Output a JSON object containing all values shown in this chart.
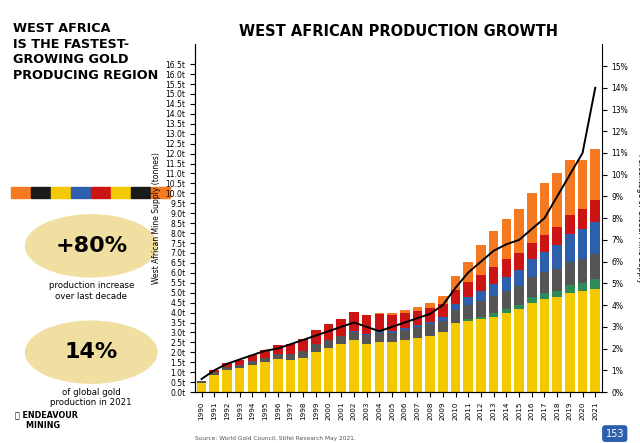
{
  "title": "WEST AFRICAN PRODUCTION GROWTH",
  "years": [
    1990,
    1991,
    1992,
    1993,
    1994,
    1995,
    1996,
    1997,
    1998,
    1999,
    2000,
    2001,
    2002,
    2003,
    2004,
    2005,
    2006,
    2007,
    2008,
    2009,
    2010,
    2011,
    2012,
    2013,
    2014,
    2015,
    2016,
    2017,
    2018,
    2019,
    2020,
    2021
  ],
  "ghana_other": [
    0.45,
    0.85,
    1.1,
    1.2,
    1.35,
    1.5,
    1.65,
    1.6,
    1.7,
    2.0,
    2.2,
    2.4,
    2.6,
    2.4,
    2.5,
    2.5,
    2.6,
    2.7,
    2.8,
    3.0,
    3.5,
    3.6,
    3.7,
    3.8,
    4.0,
    4.2,
    4.5,
    4.7,
    4.8,
    5.0,
    5.1,
    5.2
  ],
  "senegal": [
    0.0,
    0.0,
    0.0,
    0.0,
    0.0,
    0.0,
    0.0,
    0.0,
    0.0,
    0.0,
    0.0,
    0.0,
    0.0,
    0.0,
    0.0,
    0.0,
    0.0,
    0.0,
    0.0,
    0.0,
    0.0,
    0.1,
    0.1,
    0.2,
    0.2,
    0.2,
    0.3,
    0.3,
    0.3,
    0.4,
    0.4,
    0.5
  ],
  "guinea": [
    0.1,
    0.15,
    0.15,
    0.18,
    0.2,
    0.22,
    0.25,
    0.3,
    0.35,
    0.4,
    0.4,
    0.4,
    0.4,
    0.45,
    0.45,
    0.45,
    0.5,
    0.55,
    0.6,
    0.6,
    0.65,
    0.7,
    0.8,
    0.85,
    0.9,
    0.95,
    1.0,
    1.05,
    1.1,
    1.15,
    1.2,
    1.25
  ],
  "cote_divoire": [
    0.0,
    0.0,
    0.0,
    0.0,
    0.0,
    0.0,
    0.0,
    0.0,
    0.0,
    0.0,
    0.0,
    0.0,
    0.05,
    0.05,
    0.1,
    0.1,
    0.1,
    0.1,
    0.15,
    0.2,
    0.3,
    0.4,
    0.5,
    0.6,
    0.7,
    0.8,
    0.9,
    1.0,
    1.2,
    1.4,
    1.5,
    1.6
  ],
  "mali": [
    0.0,
    0.1,
    0.2,
    0.25,
    0.3,
    0.4,
    0.45,
    0.5,
    0.6,
    0.7,
    0.8,
    0.9,
    1.0,
    1.0,
    0.9,
    0.85,
    0.8,
    0.75,
    0.7,
    0.65,
    0.7,
    0.75,
    0.8,
    0.85,
    0.9,
    0.85,
    0.8,
    0.85,
    0.9,
    0.95,
    1.0,
    1.1
  ],
  "burkina_faso": [
    0.0,
    0.0,
    0.0,
    0.0,
    0.0,
    0.0,
    0.0,
    0.0,
    0.0,
    0.0,
    0.0,
    0.0,
    0.0,
    0.0,
    0.05,
    0.1,
    0.15,
    0.2,
    0.25,
    0.4,
    0.7,
    1.0,
    1.5,
    1.8,
    2.0,
    2.2,
    2.5,
    2.6,
    2.7,
    2.8,
    2.5,
    2.6
  ],
  "pct_mine_supply": [
    0.6,
    1.0,
    1.3,
    1.5,
    1.7,
    1.9,
    2.0,
    2.2,
    2.4,
    2.6,
    2.8,
    3.0,
    3.2,
    3.0,
    2.8,
    3.0,
    3.2,
    3.4,
    3.6,
    4.0,
    4.8,
    5.5,
    6.0,
    6.5,
    6.8,
    7.0,
    7.5,
    8.0,
    9.0,
    10.0,
    11.0,
    14.0
  ],
  "colors": {
    "burkina_faso": "#F47920",
    "mali": "#CC1414",
    "guinea": "#555555",
    "cote_divoire": "#2E5FAC",
    "senegal": "#2E8B57",
    "ghana_other": "#F5C900",
    "pct_line": "#000000"
  },
  "ylabel_left": "West African Mine Supply (tonnes)",
  "ylabel_right": "Percentage of Global Mine Supply",
  "source": "Source: World Gold Council, Stifel Research May 2021.",
  "left_panel_bg": "#F5C518",
  "left_title": "WEST AFRICA\nIS THE FASTEST-\nGROWING GOLD\nPRODUCING REGION",
  "stat1": "+80%",
  "stat1_sub": "production increase\nover last decade",
  "stat2": "14%",
  "stat2_sub": "of global gold\nproduction in 2021",
  "page_num": "153",
  "stripe_colors": [
    "#F47920",
    "#1A1A1A",
    "#F5C900",
    "#2E5FAC",
    "#CC1414",
    "#F5C900",
    "#1A1A1A",
    "#F47920"
  ],
  "yticks_left": [
    0.0,
    0.5,
    1.0,
    1.5,
    2.0,
    2.5,
    3.0,
    3.5,
    4.0,
    4.5,
    5.0,
    5.5,
    6.0,
    6.5,
    7.0,
    7.5,
    8.0,
    8.5,
    9.0,
    9.5,
    10.0,
    10.5,
    11.0,
    11.5,
    12.0,
    12.5,
    13.0,
    13.5,
    14.0,
    14.5,
    15.0,
    15.5,
    16.0,
    16.5
  ],
  "ytick_labels_left": [
    "0.0t",
    "0.5t",
    "1.0t",
    "1.5t",
    "2.0t",
    "2.5t",
    "3.0t",
    "3.5t",
    "4.0t",
    "4.5t",
    "5.0t",
    "5.5t",
    "6.0t",
    "6.5t",
    "7.0t",
    "7.5t",
    "8.0t",
    "8.5t",
    "9.0t",
    "9.5t",
    "10.0t",
    "10.5t",
    "11.0t",
    "11.5t",
    "12.0t",
    "12.5t",
    "13.0t",
    "13.5t",
    "14.0t",
    "14.5t",
    "15.0t",
    "15.5t",
    "16.0t",
    "16.5t"
  ],
  "yticks_right": [
    0,
    1,
    2,
    3,
    4,
    5,
    6,
    7,
    8,
    9,
    10,
    11,
    12,
    13,
    14,
    15
  ],
  "ytick_labels_right": [
    "0%",
    "1%",
    "2%",
    "3%",
    "4%",
    "5%",
    "6%",
    "7%",
    "8%",
    "9%",
    "10%",
    "11%",
    "12%",
    "13%",
    "14%",
    "15%"
  ]
}
